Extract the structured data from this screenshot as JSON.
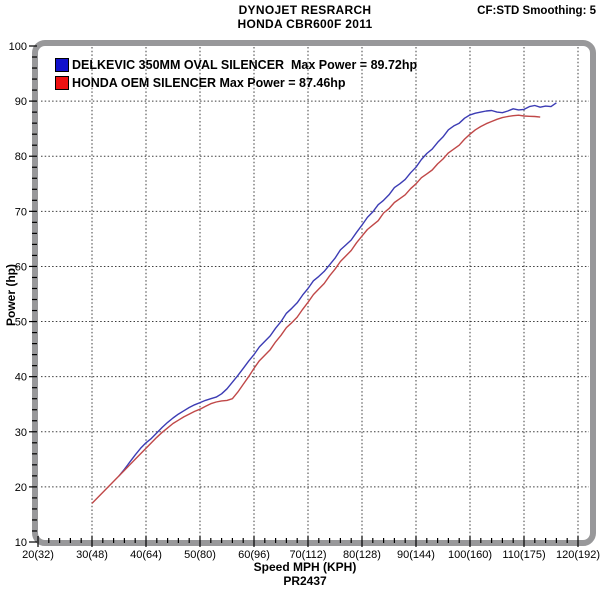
{
  "header": {
    "title_line1": "DYNOJET RESRARCH",
    "title_line2": "HONDA CBR600F 2011",
    "smoothing": "CF:STD Smoothing: 5"
  },
  "legend": [
    {
      "label": "DELKEVIC 350MM OVAL SILENCER  Max Power = 89.72hp",
      "color": "#1111cc"
    },
    {
      "label": "HONDA OEM SILENCER Max Power = 87.46hp",
      "color": "#ee1111"
    }
  ],
  "footer": {
    "xaxis_title": "Speed MPH (KPH)",
    "run_id": "PR2437"
  },
  "chart_data": {
    "type": "line",
    "title": "DYNOJET RESRARCH / HONDA CBR600F 2011",
    "xlabel": "Speed MPH (KPH)",
    "ylabel": "Power (hp)",
    "xlim": [
      20,
      120
    ],
    "ylim": [
      10,
      100
    ],
    "grid": "dashed",
    "legend_position": "top-left inside",
    "x_ticks": [
      {
        "mph": 20,
        "label": "20(32)"
      },
      {
        "mph": 30,
        "label": "30(48)"
      },
      {
        "mph": 40,
        "label": "40(64)"
      },
      {
        "mph": 50,
        "label": "50(80)"
      },
      {
        "mph": 60,
        "label": "60(96)"
      },
      {
        "mph": 70,
        "label": "70(112)"
      },
      {
        "mph": 80,
        "label": "80(128)"
      },
      {
        "mph": 90,
        "label": "90(144)"
      },
      {
        "mph": 100,
        "label": "100(160)"
      },
      {
        "mph": 110,
        "label": "110(175)"
      },
      {
        "mph": 120,
        "label": "120(192)"
      }
    ],
    "y_ticks": [
      10,
      20,
      30,
      40,
      50,
      60,
      70,
      80,
      90,
      100
    ],
    "series": [
      {
        "name": "DELKEVIC 350MM OVAL SILENCER",
        "max_power_hp": 89.72,
        "color": "#3c3cb4",
        "points": [
          [
            35,
            22
          ],
          [
            36,
            23.2
          ],
          [
            37,
            24.5
          ],
          [
            38,
            25.8
          ],
          [
            39,
            27
          ],
          [
            40,
            28
          ],
          [
            41,
            28.8
          ],
          [
            42,
            29.8
          ],
          [
            43,
            30.8
          ],
          [
            44,
            31.7
          ],
          [
            45,
            32.5
          ],
          [
            46,
            33.2
          ],
          [
            47,
            33.8
          ],
          [
            48,
            34.4
          ],
          [
            49,
            34.9
          ],
          [
            50,
            35.3
          ],
          [
            51,
            35.7
          ],
          [
            52,
            36.0
          ],
          [
            53,
            36.3
          ],
          [
            54,
            36.9
          ],
          [
            55,
            37.8
          ],
          [
            56,
            39
          ],
          [
            57,
            40.2
          ],
          [
            58,
            41.5
          ],
          [
            59,
            42.8
          ],
          [
            60,
            44
          ],
          [
            61,
            45.4
          ],
          [
            62,
            46.4
          ],
          [
            63,
            47.4
          ],
          [
            64,
            48.8
          ],
          [
            65,
            50
          ],
          [
            66,
            51.5
          ],
          [
            67,
            52.4
          ],
          [
            68,
            53.4
          ],
          [
            69,
            54.8
          ],
          [
            70,
            56
          ],
          [
            71,
            57.4
          ],
          [
            72,
            58.2
          ],
          [
            73,
            59.1
          ],
          [
            74,
            60.3
          ],
          [
            75,
            61.5
          ],
          [
            76,
            63.0
          ],
          [
            77,
            63.9
          ],
          [
            78,
            64.8
          ],
          [
            79,
            66.2
          ],
          [
            80,
            67.5
          ],
          [
            81,
            68.9
          ],
          [
            82,
            69.9
          ],
          [
            83,
            71.2
          ],
          [
            84,
            72
          ],
          [
            85,
            73
          ],
          [
            86,
            74.3
          ],
          [
            87,
            75
          ],
          [
            88,
            75.8
          ],
          [
            89,
            77
          ],
          [
            90,
            78
          ],
          [
            91,
            79.4
          ],
          [
            92,
            80.5
          ],
          [
            93,
            81.3
          ],
          [
            94,
            82.5
          ],
          [
            95,
            83.5
          ],
          [
            96,
            84.8
          ],
          [
            97,
            85.5
          ],
          [
            98,
            86.0
          ],
          [
            99,
            86.9
          ],
          [
            100,
            87.5
          ],
          [
            101,
            87.8
          ],
          [
            102,
            88.0
          ],
          [
            103,
            88.2
          ],
          [
            104,
            88.3
          ],
          [
            105,
            88.0
          ],
          [
            106,
            87.9
          ],
          [
            107,
            88.2
          ],
          [
            108,
            88.6
          ],
          [
            109,
            88.4
          ],
          [
            110,
            88.5
          ],
          [
            111,
            89.0
          ],
          [
            112,
            89.2
          ],
          [
            113,
            88.9
          ],
          [
            114,
            89.1
          ],
          [
            115,
            89.0
          ],
          [
            116,
            89.7
          ]
        ]
      },
      {
        "name": "HONDA OEM SILENCER",
        "max_power_hp": 87.46,
        "color": "#c04848",
        "points": [
          [
            30,
            17
          ],
          [
            31,
            18
          ],
          [
            32,
            19
          ],
          [
            33,
            20
          ],
          [
            34,
            21
          ],
          [
            35,
            22
          ],
          [
            36,
            23
          ],
          [
            37,
            24
          ],
          [
            38,
            25
          ],
          [
            39,
            26
          ],
          [
            40,
            27
          ],
          [
            41,
            28
          ],
          [
            42,
            29
          ],
          [
            43,
            29.9
          ],
          [
            44,
            30.7
          ],
          [
            45,
            31.5
          ],
          [
            46,
            32.1
          ],
          [
            47,
            32.7
          ],
          [
            48,
            33.2
          ],
          [
            49,
            33.7
          ],
          [
            50,
            34.1
          ],
          [
            51,
            34.6
          ],
          [
            52,
            35.1
          ],
          [
            53,
            35.4
          ],
          [
            54,
            35.6
          ],
          [
            55,
            35.7
          ],
          [
            56,
            36.0
          ],
          [
            57,
            37.2
          ],
          [
            58,
            38.6
          ],
          [
            59,
            40
          ],
          [
            60,
            41.5
          ],
          [
            61,
            42.9
          ],
          [
            62,
            43.9
          ],
          [
            63,
            44.9
          ],
          [
            64,
            46.3
          ],
          [
            65,
            47.5
          ],
          [
            66,
            48.9
          ],
          [
            67,
            49.8
          ],
          [
            68,
            50.8
          ],
          [
            69,
            52.2
          ],
          [
            70,
            53.5
          ],
          [
            71,
            54.9
          ],
          [
            72,
            55.9
          ],
          [
            73,
            56.9
          ],
          [
            74,
            58.3
          ],
          [
            75,
            59.5
          ],
          [
            76,
            60.9
          ],
          [
            77,
            61.9
          ],
          [
            78,
            62.9
          ],
          [
            79,
            64.3
          ],
          [
            80,
            65.5
          ],
          [
            81,
            66.7
          ],
          [
            82,
            67.5
          ],
          [
            83,
            68.3
          ],
          [
            84,
            69.7
          ],
          [
            85,
            70.5
          ],
          [
            86,
            71.6
          ],
          [
            87,
            72.3
          ],
          [
            88,
            73.0
          ],
          [
            89,
            74.1
          ],
          [
            90,
            75
          ],
          [
            91,
            76.1
          ],
          [
            92,
            76.8
          ],
          [
            93,
            77.5
          ],
          [
            94,
            78.6
          ],
          [
            95,
            79.5
          ],
          [
            96,
            80.6
          ],
          [
            97,
            81.3
          ],
          [
            98,
            82.0
          ],
          [
            99,
            83.1
          ],
          [
            100,
            84
          ],
          [
            101,
            84.8
          ],
          [
            102,
            85.4
          ],
          [
            103,
            85.9
          ],
          [
            104,
            86.3
          ],
          [
            105,
            86.7
          ],
          [
            106,
            87.0
          ],
          [
            107,
            87.2
          ],
          [
            108,
            87.35
          ],
          [
            109,
            87.45
          ],
          [
            110,
            87.3
          ],
          [
            111,
            87.25
          ],
          [
            112,
            87.2
          ],
          [
            113,
            87.1
          ]
        ]
      }
    ],
    "annotations": [
      "PR2437"
    ]
  }
}
